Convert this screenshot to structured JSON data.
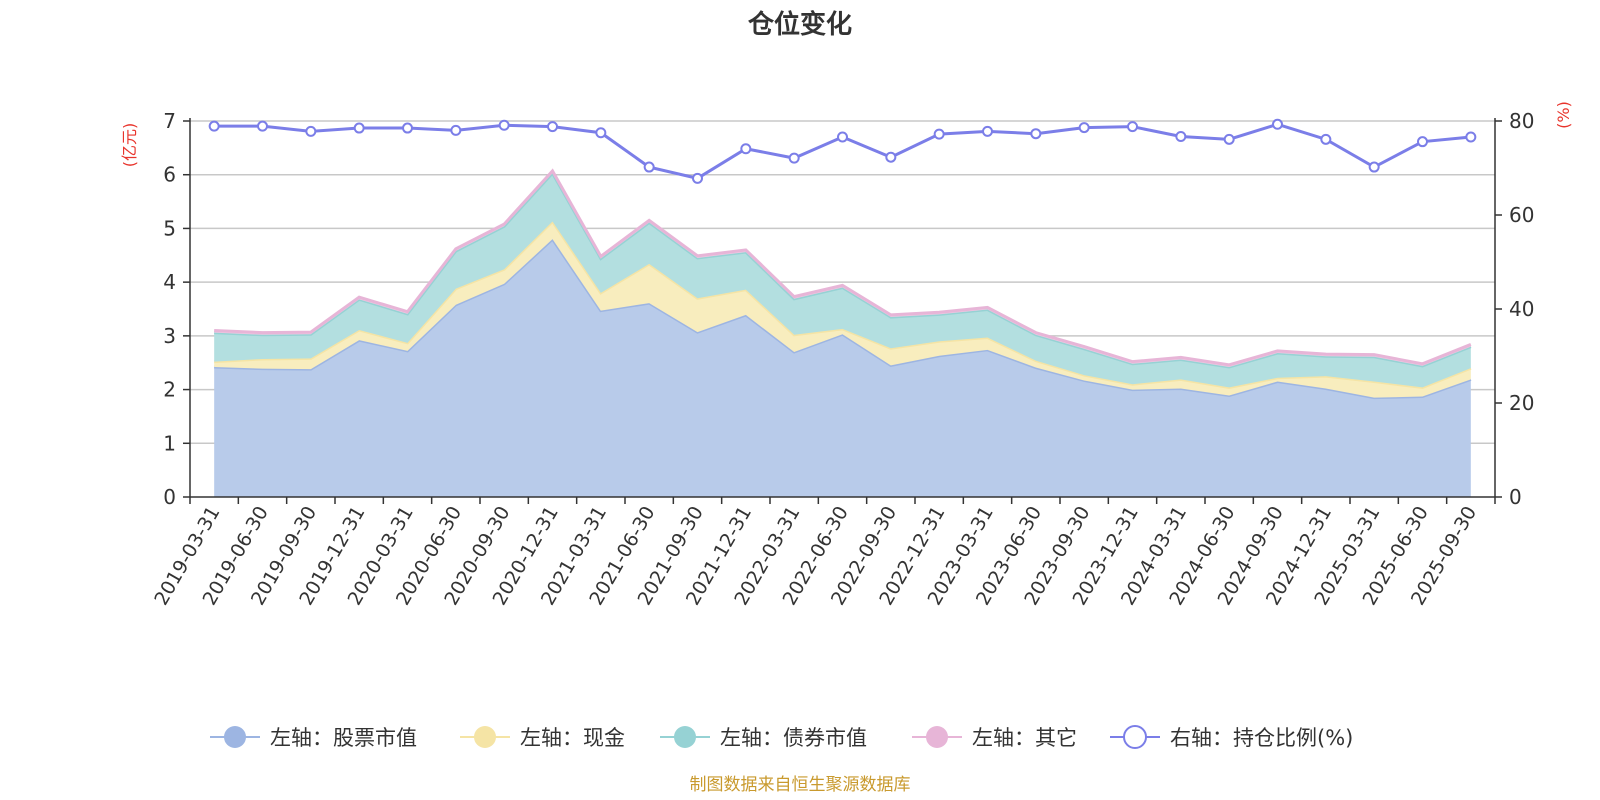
{
  "chart_data": {
    "type": "area",
    "title": "仓位变化",
    "left_unit": "(亿元)",
    "right_unit": "(%)",
    "source": "制图数据来自恒生聚源数据库",
    "categories": [
      "2019-03-31",
      "2019-06-30",
      "2019-09-30",
      "2019-12-31",
      "2020-03-31",
      "2020-06-30",
      "2020-09-30",
      "2020-12-31",
      "2021-03-31",
      "2021-06-30",
      "2021-09-30",
      "2021-12-31",
      "2022-03-31",
      "2022-06-30",
      "2022-09-30",
      "2022-12-31",
      "2023-03-31",
      "2023-06-30",
      "2023-09-30",
      "2023-12-31",
      "2024-03-31",
      "2024-06-30",
      "2024-09-30",
      "2024-12-31",
      "2025-03-31",
      "2025-06-30",
      "2025-09-30"
    ],
    "left_axis": {
      "ylim": [
        0,
        7
      ],
      "ticks": [
        0,
        1,
        2,
        3,
        4,
        5,
        6,
        7
      ]
    },
    "right_axis": {
      "ylim": [
        0,
        80
      ],
      "ticks": [
        0,
        20,
        40,
        60,
        80
      ]
    },
    "series": [
      {
        "name": "左轴：股票市值",
        "axis": "left",
        "stack": true,
        "color": "#9db5e2",
        "fill": "#b8cbea",
        "values": [
          2.42,
          2.39,
          2.38,
          2.92,
          2.72,
          3.58,
          3.97,
          4.8,
          3.47,
          3.61,
          3.07,
          3.39,
          2.7,
          3.03,
          2.45,
          2.63,
          2.74,
          2.41,
          2.17,
          2.0,
          2.02,
          1.89,
          2.15,
          2.02,
          1.85,
          1.87,
          2.19
        ]
      },
      {
        "name": "左轴：现金",
        "axis": "left",
        "stack": true,
        "color": "#f5e4a5",
        "fill": "#f8edbe",
        "values": [
          0.1,
          0.18,
          0.2,
          0.19,
          0.15,
          0.3,
          0.27,
          0.33,
          0.33,
          0.73,
          0.63,
          0.47,
          0.32,
          0.1,
          0.32,
          0.27,
          0.23,
          0.13,
          0.1,
          0.1,
          0.17,
          0.15,
          0.07,
          0.23,
          0.3,
          0.17,
          0.21
        ]
      },
      {
        "name": "左轴：债券市值",
        "axis": "left",
        "stack": true,
        "color": "#96d2d4",
        "fill": "#b3dfe0",
        "values": [
          0.54,
          0.45,
          0.45,
          0.57,
          0.54,
          0.7,
          0.8,
          0.9,
          0.64,
          0.77,
          0.75,
          0.7,
          0.67,
          0.77,
          0.58,
          0.5,
          0.52,
          0.48,
          0.49,
          0.38,
          0.37,
          0.38,
          0.46,
          0.37,
          0.46,
          0.4,
          0.4
        ]
      },
      {
        "name": "左轴：其它",
        "axis": "left",
        "stack": true,
        "color": "#e7b5d7",
        "fill": "#efc9e3",
        "values": [
          0.04,
          0.04,
          0.04,
          0.04,
          0.04,
          0.04,
          0.04,
          0.04,
          0.04,
          0.04,
          0.04,
          0.04,
          0.04,
          0.04,
          0.04,
          0.04,
          0.04,
          0.04,
          0.04,
          0.04,
          0.04,
          0.04,
          0.04,
          0.04,
          0.04,
          0.04,
          0.04
        ]
      },
      {
        "name": "右轴：持仓比例(%)",
        "axis": "right",
        "stack": false,
        "color": "#7b7ee8",
        "values": [
          78.9,
          78.9,
          77.8,
          78.5,
          78.5,
          78.0,
          79.1,
          78.8,
          77.5,
          70.2,
          67.8,
          74.1,
          72.1,
          76.6,
          72.3,
          77.2,
          77.8,
          77.3,
          78.6,
          78.8,
          76.7,
          76.1,
          79.3,
          76.1,
          70.2,
          75.6,
          76.6
        ]
      }
    ]
  }
}
